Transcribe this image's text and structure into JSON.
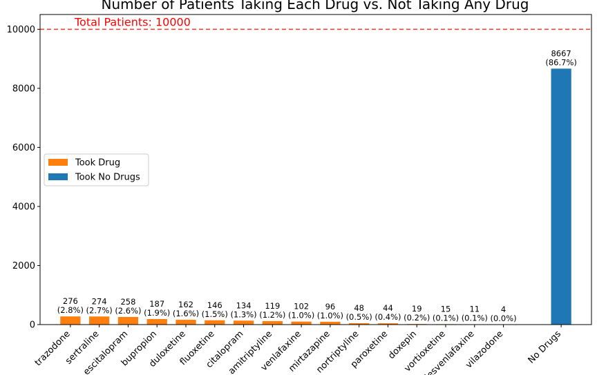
{
  "chart_data": {
    "type": "bar",
    "title": "Number of Patients Taking Each Drug vs. Not Taking Any Drug",
    "xlabel": "",
    "ylabel": "",
    "ylim": [
      0,
      10500
    ],
    "yticks": [
      0,
      2000,
      4000,
      6000,
      8000,
      10000
    ],
    "reference_line": {
      "value": 10000,
      "label": "Total Patients: 10000",
      "color": "#ff0000",
      "style": "dashed"
    },
    "series": [
      {
        "name": "Took Drug",
        "color": "#ff7f0e",
        "categories": [
          "trazodone",
          "sertraline",
          "escitalopram",
          "bupropion",
          "duloxetine",
          "fluoxetine",
          "citalopram",
          "amitriptyline",
          "venlafaxine",
          "mirtazapine",
          "nortriptyline",
          "paroxetine",
          "doxepin",
          "vortioxetine",
          "desvenlafaxine",
          "vilazodone"
        ],
        "values": [
          276,
          274,
          258,
          187,
          162,
          146,
          134,
          119,
          102,
          96,
          48,
          44,
          19,
          15,
          11,
          4
        ],
        "pct_labels": [
          "(2.8%)",
          "(2.7%)",
          "(2.6%)",
          "(1.9%)",
          "(1.6%)",
          "(1.5%)",
          "(1.3%)",
          "(1.2%)",
          "(1.0%)",
          "(1.0%)",
          "(0.5%)",
          "(0.4%)",
          "(0.2%)",
          "(0.1%)",
          "(0.1%)",
          "(0.0%)"
        ]
      },
      {
        "name": "Took No Drugs",
        "color": "#1f77b4",
        "categories": [
          "No Drugs"
        ],
        "values": [
          8667
        ],
        "pct_labels": [
          "(86.7%)"
        ]
      }
    ],
    "legend": {
      "placement": "center-left"
    },
    "grid": false
  }
}
